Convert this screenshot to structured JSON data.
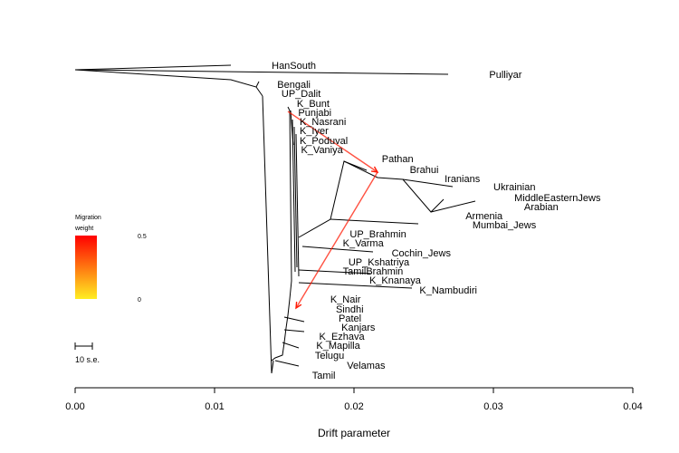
{
  "chart_data": {
    "type": "tree",
    "xlabel": "Drift parameter",
    "xlim": [
      0,
      0.04
    ],
    "x_ticks": [
      "0.00",
      "0.01",
      "0.02",
      "0.03",
      "0.04"
    ],
    "scale_bar_label": "10 s.e.",
    "legend": {
      "title_line1": "Migration",
      "title_line2": "weight",
      "max_label": "0.5",
      "min_label": "0",
      "color_top": "#ff0000",
      "color_bottom": "#ffee22"
    },
    "leaves": [
      {
        "name": "HanSouth",
        "drift": 0.0141
      },
      {
        "name": "Pulliyar",
        "drift": 0.0297
      },
      {
        "name": "Bengali",
        "drift": 0.0145
      },
      {
        "name": "UP_Dalit",
        "drift": 0.0148
      },
      {
        "name": "K_Bunt",
        "drift": 0.0159
      },
      {
        "name": "Punjabi",
        "drift": 0.016
      },
      {
        "name": "K_Nasrani",
        "drift": 0.0161
      },
      {
        "name": "K_Iyer",
        "drift": 0.0161
      },
      {
        "name": "K_Poduval",
        "drift": 0.0161
      },
      {
        "name": "K_Vaniya",
        "drift": 0.0162
      },
      {
        "name": "Pathan",
        "drift": 0.022
      },
      {
        "name": "Brahui",
        "drift": 0.024
      },
      {
        "name": "Iranians",
        "drift": 0.0265
      },
      {
        "name": "Ukrainian",
        "drift": 0.03
      },
      {
        "name": "MiddleEasternJews",
        "drift": 0.0315
      },
      {
        "name": "Arabian",
        "drift": 0.0322
      },
      {
        "name": "Armenia",
        "drift": 0.028
      },
      {
        "name": "Mumbai_Jews",
        "drift": 0.0285
      },
      {
        "name": "UP_Brahmin",
        "drift": 0.0197
      },
      {
        "name": "K_Varma",
        "drift": 0.0192
      },
      {
        "name": "Cochin_Jews",
        "drift": 0.0227
      },
      {
        "name": "UP_Kshatriya",
        "drift": 0.0196
      },
      {
        "name": "TamilBrahmin",
        "drift": 0.0192
      },
      {
        "name": "K_Knanaya",
        "drift": 0.0211
      },
      {
        "name": "K_Nambudiri",
        "drift": 0.0247
      },
      {
        "name": "K_Nair",
        "drift": 0.0183
      },
      {
        "name": "Sindhi",
        "drift": 0.0187
      },
      {
        "name": "Patel",
        "drift": 0.0189
      },
      {
        "name": "Kanjars",
        "drift": 0.0191
      },
      {
        "name": "K_Ezhava",
        "drift": 0.0175
      },
      {
        "name": "K_Mapilla",
        "drift": 0.0173
      },
      {
        "name": "Telugu",
        "drift": 0.0172
      },
      {
        "name": "Velamas",
        "drift": 0.0195
      },
      {
        "name": "Tamil",
        "drift": 0.017
      }
    ],
    "migration_edges": [
      {
        "from": "K_Bunt",
        "to": "Brahui",
        "weight": 0.45
      },
      {
        "from": "Brahui",
        "to": "K_Nair",
        "weight": 0.45
      }
    ]
  }
}
